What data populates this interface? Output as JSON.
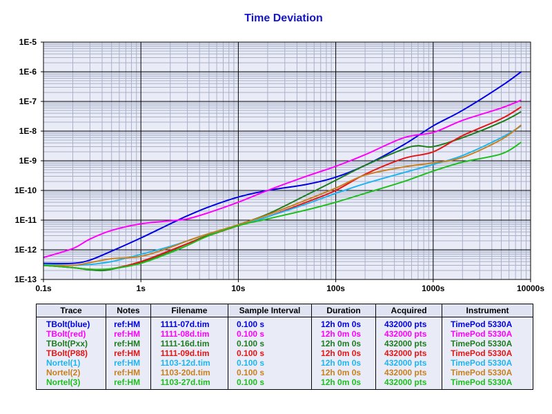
{
  "chart_data": {
    "type": "line",
    "title": "Time Deviation",
    "x_scale": "log",
    "y_scale": "log",
    "xlim": [
      0.1,
      10000
    ],
    "ylim": [
      1e-13,
      1e-05
    ],
    "grid": true,
    "x_tick_labels": [
      "0.1s",
      "1s",
      "10s",
      "100s",
      "1000s",
      "10000s"
    ],
    "y_tick_labels": [
      "1E-13",
      "1E-12",
      "1E-11",
      "1E-10",
      "1E-9",
      "1E-8",
      "1E-7",
      "1E-6",
      "1E-5"
    ],
    "series": [
      {
        "name": "TBolt(blue)",
        "color": "#0000e6",
        "x": [
          0.1,
          0.2,
          0.3,
          0.5,
          1,
          2,
          3,
          5,
          10,
          20,
          50,
          100,
          200,
          500,
          1000,
          2000,
          5000,
          8000
        ],
        "y": [
          3.5e-13,
          3.5e-13,
          4.5e-13,
          9e-13,
          2.5e-12,
          7.5e-12,
          1.4e-11,
          2.8e-11,
          6e-11,
          1e-10,
          1.6e-10,
          2.8e-10,
          7e-10,
          3.5e-09,
          1.5e-08,
          5e-08,
          3.3e-07,
          1e-06
        ]
      },
      {
        "name": "TBolt(red)",
        "color": "#ff00ff",
        "x": [
          0.1,
          0.2,
          0.3,
          0.5,
          1,
          2,
          3,
          5,
          10,
          20,
          50,
          100,
          200,
          500,
          1000,
          2000,
          5000,
          8000
        ],
        "y": [
          5.5e-13,
          1.1e-12,
          2.3e-12,
          4.5e-12,
          7.5e-12,
          9.5e-12,
          1.1e-11,
          1.8e-11,
          4e-11,
          1e-10,
          3e-10,
          6.5e-10,
          1.6e-09,
          6e-09,
          9e-09,
          2.3e-08,
          6e-08,
          1.1e-07
        ]
      },
      {
        "name": "TBolt(Pxx)",
        "color": "#1e7b1e",
        "x": [
          0.1,
          0.2,
          0.3,
          0.4,
          0.5,
          1,
          2,
          3,
          5,
          10,
          20,
          50,
          100,
          200,
          500,
          700,
          1000,
          2000,
          5000,
          8000
        ],
        "y": [
          3e-13,
          2.5e-13,
          2.1e-13,
          2e-13,
          2.2e-13,
          3.8e-13,
          9e-13,
          1.6e-12,
          3.2e-12,
          7e-12,
          1.6e-11,
          7e-11,
          2.2e-10,
          7e-10,
          2.5e-09,
          3.2e-09,
          3e-09,
          6e-09,
          2e-08,
          4.5e-08
        ]
      },
      {
        "name": "TBolt(P88)",
        "color": "#e61414",
        "x": [
          0.1,
          0.2,
          0.3,
          0.5,
          1,
          2,
          3,
          5,
          10,
          20,
          50,
          100,
          200,
          500,
          1000,
          2000,
          5000,
          8000
        ],
        "y": [
          3e-13,
          2.5e-13,
          2.2e-13,
          2.3e-13,
          4e-13,
          9.5e-13,
          1.6e-12,
          3e-12,
          6.5e-12,
          1.3e-11,
          4e-11,
          1e-10,
          3.5e-10,
          1.2e-09,
          2e-09,
          7e-09,
          2.6e-08,
          6.5e-08
        ]
      },
      {
        "name": "Nortel(1)",
        "color": "#1eb4f0",
        "x": [
          0.1,
          0.2,
          0.3,
          0.5,
          1,
          2,
          3,
          5,
          10,
          20,
          50,
          100,
          200,
          500,
          1000,
          2000,
          5000,
          8000
        ],
        "y": [
          3.2e-13,
          3e-13,
          3.2e-13,
          4e-13,
          7e-13,
          1.3e-12,
          2e-12,
          3.5e-12,
          6.5e-12,
          1.3e-11,
          3.5e-11,
          8e-11,
          1.7e-10,
          4e-10,
          7.5e-10,
          1.5e-09,
          6e-09,
          1.5e-08
        ]
      },
      {
        "name": "Nortel(2)",
        "color": "#c8801e",
        "x": [
          0.1,
          0.2,
          0.3,
          0.5,
          1,
          2,
          3,
          5,
          10,
          20,
          50,
          100,
          200,
          500,
          1000,
          2000,
          5000,
          8000
        ],
        "y": [
          3e-13,
          3e-13,
          3.7e-13,
          5e-13,
          6e-13,
          1.2e-12,
          2e-12,
          3.5e-12,
          7e-12,
          1.5e-11,
          4.8e-11,
          1.2e-10,
          3.3e-10,
          6.2e-10,
          8.5e-10,
          1.3e-09,
          5.2e-09,
          1.6e-08
        ]
      },
      {
        "name": "Nortel(3)",
        "color": "#1ebe1e",
        "x": [
          0.1,
          0.2,
          0.3,
          0.5,
          1,
          2,
          3,
          5,
          10,
          20,
          50,
          100,
          200,
          500,
          1000,
          2000,
          5000,
          8000
        ],
        "y": [
          3e-13,
          2.5e-13,
          2.2e-13,
          2.3e-13,
          3.5e-13,
          8e-13,
          1.4e-12,
          3e-12,
          6.5e-12,
          1.1e-11,
          2.2e-11,
          4e-11,
          8e-11,
          2e-10,
          4.5e-10,
          9e-10,
          1.7e-09,
          4.2e-09
        ]
      }
    ]
  },
  "legend": {
    "headers": [
      "Trace",
      "Notes",
      "Filename",
      "Sample Interval",
      "Duration",
      "Acquired",
      "Instrument"
    ],
    "rows": [
      {
        "color": "#0000e6",
        "trace": "TBolt(blue)",
        "notes": "ref:HM",
        "filename": "1111-07d.tim",
        "interval": "0.100 s",
        "duration": "12h 0m 0s",
        "acquired": "432000 pts",
        "instrument": "TimePod 5330A"
      },
      {
        "color": "#ff00ff",
        "trace": "TBolt(red)",
        "notes": "ref:HM",
        "filename": "1111-08d.tim",
        "interval": "0.100 s",
        "duration": "12h 0m 0s",
        "acquired": "432000 pts",
        "instrument": "TimePod 5330A"
      },
      {
        "color": "#1e7b1e",
        "trace": "TBolt(Pxx)",
        "notes": "ref:HM",
        "filename": "1111-16d.tim",
        "interval": "0.100 s",
        "duration": "12h 0m 0s",
        "acquired": "432000 pts",
        "instrument": "TimePod 5330A"
      },
      {
        "color": "#e61414",
        "trace": "TBolt(P88)",
        "notes": "ref:HM",
        "filename": "1111-09d.tim",
        "interval": "0.100 s",
        "duration": "12h 0m 0s",
        "acquired": "432000 pts",
        "instrument": "TimePod 5330A"
      },
      {
        "color": "#1eb4f0",
        "trace": "Nortel(1)",
        "notes": "ref:HM",
        "filename": "1103-12d.tim",
        "interval": "0.100 s",
        "duration": "12h 0m 0s",
        "acquired": "432000 pts",
        "instrument": "TimePod 5330A"
      },
      {
        "color": "#c8801e",
        "trace": "Nortel(2)",
        "notes": "ref:HM",
        "filename": "1103-20d.tim",
        "interval": "0.100 s",
        "duration": "12h 0m 0s",
        "acquired": "432000 pts",
        "instrument": "TimePod 5330A"
      },
      {
        "color": "#1ebe1e",
        "trace": "Nortel(3)",
        "notes": "ref:HM",
        "filename": "1103-27d.tim",
        "interval": "0.100 s",
        "duration": "12h 0m 0s",
        "acquired": "432000 pts",
        "instrument": "TimePod 5330A"
      }
    ]
  }
}
